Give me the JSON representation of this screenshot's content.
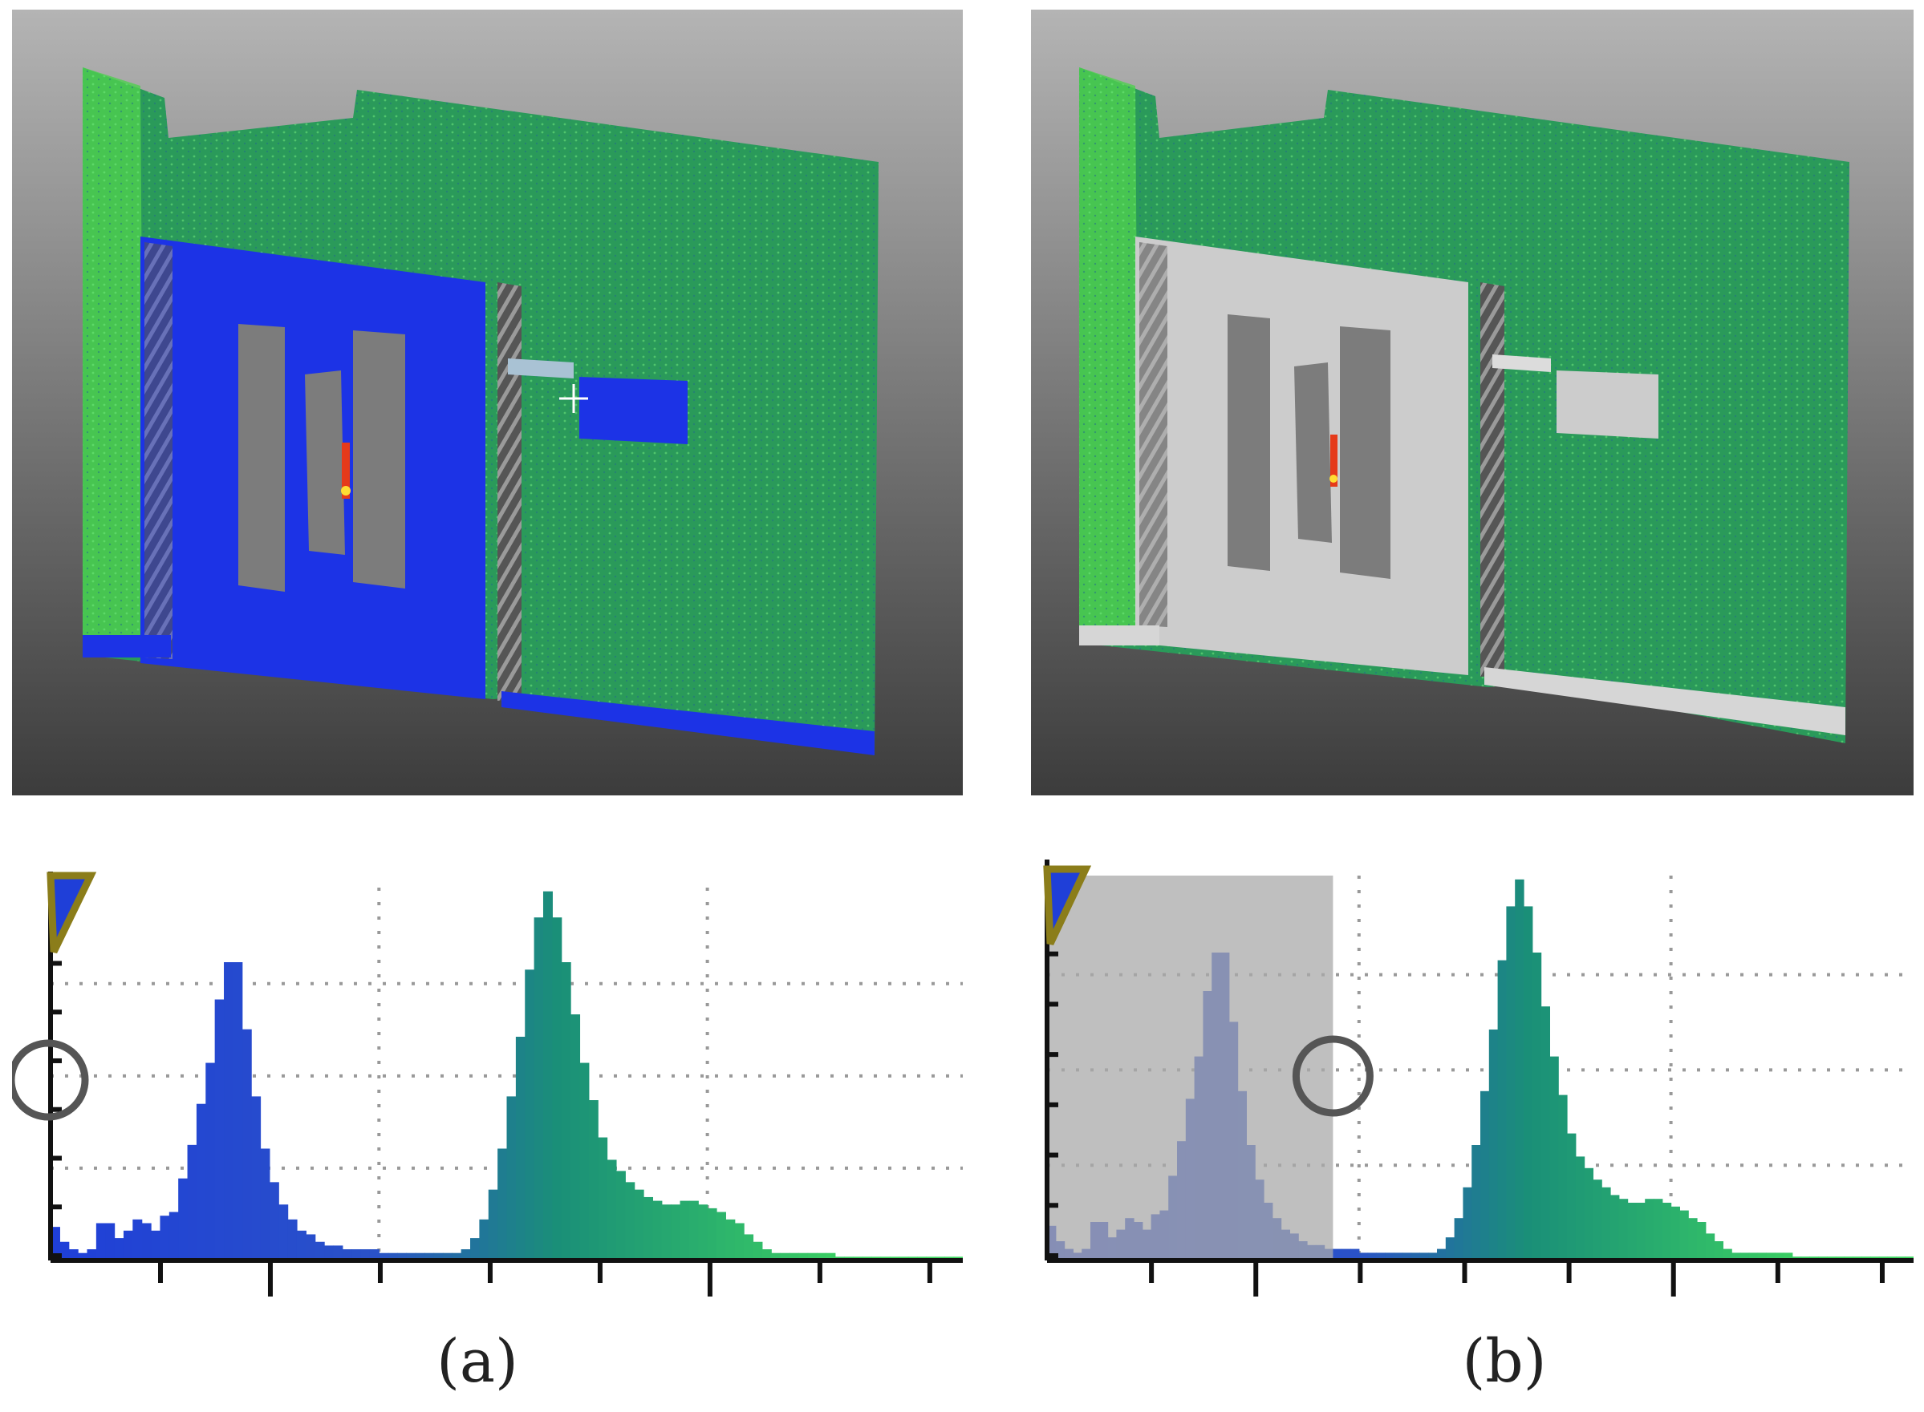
{
  "colors": {
    "background_top": "#b4b4b4",
    "background_bottom": "#3c3c3c",
    "wall": "#2a9a5a",
    "wall_bright": "#4fd04f",
    "door_blue": "#1c33e6",
    "door_gray": "#cccccc",
    "window_gray": "#7c7c7c",
    "hist_blue": "#1f3fd8",
    "hist_teal": "#1a8f78",
    "hist_green": "#3ed660",
    "selection": "#aaaaaa"
  },
  "panels": [
    {
      "id": "a",
      "caption": "(a)",
      "door_color": "door_blue",
      "selection": null
    },
    {
      "id": "b",
      "caption": "(b)",
      "door_color": "door_gray",
      "selection": [
        0.0,
        0.33
      ]
    }
  ],
  "chart_data": [
    {
      "type": "bar",
      "x_range": [
        0,
        1
      ],
      "grid": true,
      "values": [
        0.09,
        0.05,
        0.03,
        0.02,
        0.03,
        0.1,
        0.1,
        0.06,
        0.08,
        0.11,
        0.1,
        0.08,
        0.12,
        0.13,
        0.22,
        0.31,
        0.42,
        0.53,
        0.7,
        0.8,
        0.8,
        0.62,
        0.44,
        0.3,
        0.21,
        0.15,
        0.11,
        0.08,
        0.07,
        0.05,
        0.04,
        0.04,
        0.03,
        0.03,
        0.03,
        0.03,
        0.02,
        0.02,
        0.02,
        0.02,
        0.02,
        0.02,
        0.02,
        0.02,
        0.02,
        0.03,
        0.06,
        0.11,
        0.19,
        0.3,
        0.44,
        0.6,
        0.78,
        0.92,
        0.99,
        0.92,
        0.8,
        0.66,
        0.53,
        0.43,
        0.33,
        0.27,
        0.24,
        0.21,
        0.19,
        0.17,
        0.16,
        0.15,
        0.15,
        0.16,
        0.16,
        0.15,
        0.14,
        0.13,
        0.11,
        0.1,
        0.07,
        0.05,
        0.03,
        0.02,
        0.02,
        0.02,
        0.02,
        0.02,
        0.02,
        0.02,
        0.01,
        0.01,
        0.01,
        0.01,
        0.01,
        0.01,
        0.01,
        0.01,
        0.01,
        0.01,
        0.01,
        0.01,
        0.01,
        0.01
      ]
    },
    {
      "type": "bar",
      "x_range": [
        0,
        1
      ],
      "grid": true,
      "values": [
        0.09,
        0.05,
        0.03,
        0.02,
        0.03,
        0.1,
        0.1,
        0.06,
        0.08,
        0.11,
        0.1,
        0.08,
        0.12,
        0.13,
        0.22,
        0.31,
        0.42,
        0.53,
        0.7,
        0.8,
        0.8,
        0.62,
        0.44,
        0.3,
        0.21,
        0.15,
        0.11,
        0.08,
        0.07,
        0.05,
        0.04,
        0.04,
        0.03,
        0.03,
        0.03,
        0.03,
        0.02,
        0.02,
        0.02,
        0.02,
        0.02,
        0.02,
        0.02,
        0.02,
        0.02,
        0.03,
        0.06,
        0.11,
        0.19,
        0.3,
        0.44,
        0.6,
        0.78,
        0.92,
        0.99,
        0.92,
        0.8,
        0.66,
        0.53,
        0.43,
        0.33,
        0.27,
        0.24,
        0.21,
        0.19,
        0.17,
        0.16,
        0.15,
        0.15,
        0.16,
        0.16,
        0.15,
        0.14,
        0.13,
        0.11,
        0.1,
        0.07,
        0.05,
        0.03,
        0.02,
        0.02,
        0.02,
        0.02,
        0.02,
        0.02,
        0.02,
        0.01,
        0.01,
        0.01,
        0.01,
        0.01,
        0.01,
        0.01,
        0.01,
        0.01,
        0.01,
        0.01,
        0.01,
        0.01,
        0.01
      ],
      "selection_range": [
        0.0,
        0.33
      ]
    }
  ]
}
